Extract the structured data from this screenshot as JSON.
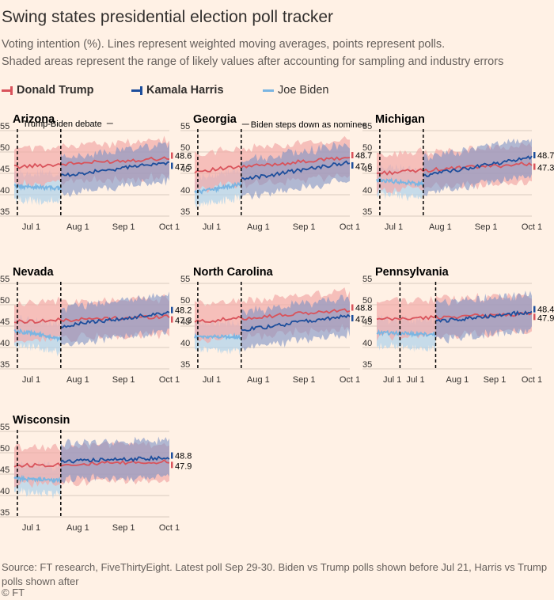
{
  "header": {
    "title": "Swing states presidential election poll tracker",
    "subtitle_line1": "Voting intention (%). Lines represent weighted moving averages, points represent polls.",
    "subtitle_line2": "Shaded areas represent the range of likely values after accounting for sampling and industry errors"
  },
  "legend": {
    "trump": "Donald Trump",
    "harris": "Kamala Harris",
    "biden": "Joe Biden"
  },
  "colors": {
    "trump": "#d9535b",
    "trump_band": "#f2a9a8",
    "harris": "#1d4e9c",
    "harris_band": "#7d93c4",
    "biden": "#7ab5e2",
    "biden_band": "#b3d3ea",
    "grid": "#d9ccc0",
    "axis_text": "#33302e"
  },
  "annotations": {
    "debate": "Trump-Biden debate",
    "stepdown": "Biden steps down as nominee"
  },
  "footer": {
    "source": "Source: FT research, FiveThirtyEight. Latest poll Sep 29-30. Biden vs Trump polls shown before Jul 21, Harris vs Trump polls shown after",
    "credit": "© FT"
  },
  "chart_data": [
    {
      "type": "line",
      "state": "Arizona",
      "ylim": [
        35,
        55
      ],
      "yticks": [
        35,
        40,
        45,
        50,
        55
      ],
      "xticks": [
        "Jul 1",
        "Aug 1",
        "Sep 1",
        "Oct 1"
      ],
      "trump_end": 48.6,
      "harris_end": 47.5,
      "trump_start": 46.5,
      "biden_start": 42.0,
      "biden_end": 41.5,
      "harris_start": 44.5
    },
    {
      "type": "line",
      "state": "Georgia",
      "ylim": [
        35,
        55
      ],
      "yticks": [
        35,
        40,
        45,
        50,
        55
      ],
      "xticks": [
        "Jul 1",
        "Aug 1",
        "Sep 1",
        "Oct 1"
      ],
      "trump_end": 48.7,
      "harris_end": 47.6,
      "trump_start": 45.5,
      "biden_start": 40.5,
      "biden_end": 42.5,
      "harris_start": 43.5
    },
    {
      "type": "line",
      "state": "Michigan",
      "ylim": [
        35,
        55
      ],
      "yticks": [
        35,
        40,
        45,
        50,
        55
      ],
      "xticks": [
        "Jul 1",
        "Aug 1",
        "Sep 1",
        "Oct 1"
      ],
      "trump_end": 47.3,
      "harris_end": 48.7,
      "trump_start": 45.0,
      "biden_start": 43.5,
      "biden_end": 42.5,
      "harris_start": 44.5
    },
    {
      "type": "line",
      "state": "Nevada",
      "ylim": [
        35,
        55
      ],
      "yticks": [
        35,
        40,
        45,
        50,
        55
      ],
      "xticks": [
        "Jul 1",
        "Aug 1",
        "Sep 1",
        "Oct 1"
      ],
      "trump_end": 47.3,
      "harris_end": 48.2,
      "trump_start": 46.0,
      "biden_start": 44.0,
      "biden_end": 42.0,
      "harris_start": 45.0
    },
    {
      "type": "line",
      "state": "North Carolina",
      "ylim": [
        35,
        55
      ],
      "yticks": [
        35,
        40,
        45,
        50,
        55
      ],
      "xticks": [
        "Jul 1",
        "Aug 1",
        "Sep 1",
        "Oct 1"
      ],
      "trump_end": 48.8,
      "harris_end": 47.6,
      "trump_start": 46.0,
      "biden_start": 42.5,
      "biden_end": 42.5,
      "harris_start": 44.0
    },
    {
      "type": "line",
      "state": "Pennsylvania",
      "ylim": [
        35,
        55
      ],
      "yticks": [
        35,
        40,
        45,
        50,
        55
      ],
      "xticks": [
        "Jul 1",
        "Aug 1",
        "Sep 1",
        "Oct 1"
      ],
      "trump_end": 47.9,
      "harris_end": 48.4,
      "trump_start": 46.5,
      "biden_start": 43.5,
      "biden_end": 43.0,
      "harris_start": 46.0
    },
    {
      "type": "line",
      "state": "Wisconsin",
      "ylim": [
        35,
        55
      ],
      "yticks": [
        35,
        40,
        45,
        50,
        55
      ],
      "xticks": [
        "Jul 1",
        "Aug 1",
        "Sep 1",
        "Oct 1"
      ],
      "trump_end": 47.9,
      "harris_end": 48.8,
      "trump_start": 47.0,
      "biden_start": 44.0,
      "biden_end": 43.5,
      "harris_start": 48.0
    }
  ]
}
